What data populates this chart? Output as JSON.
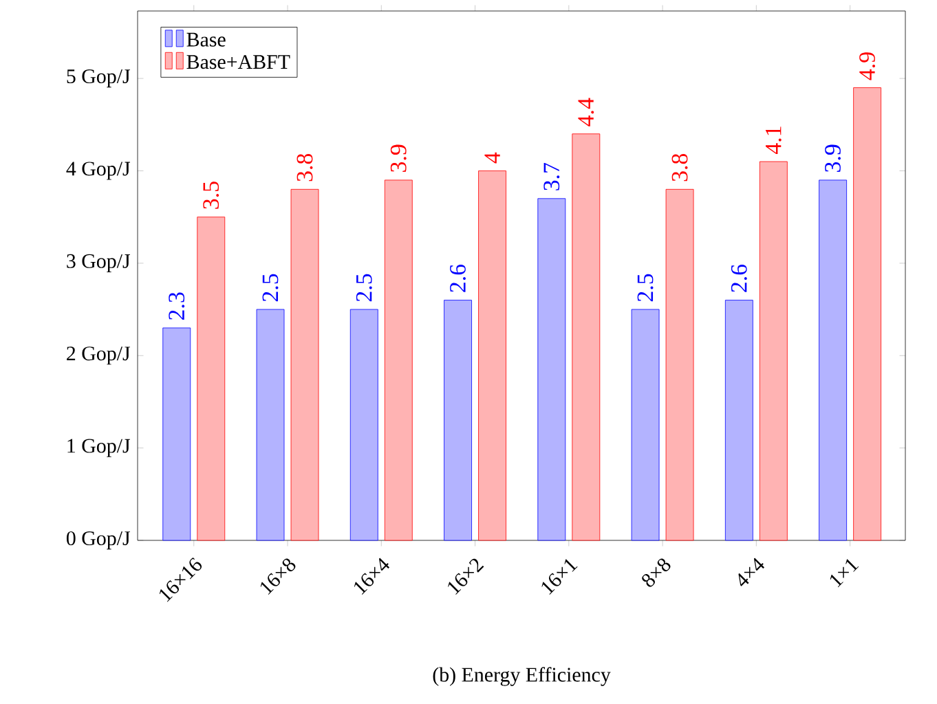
{
  "chart_data": {
    "type": "bar",
    "annotations": [
      "(b) Energy Efficiency"
    ],
    "categories": [
      "16×16",
      "16×8",
      "16×4",
      "16×2",
      "16×1",
      "8×8",
      "4×4",
      "1×1"
    ],
    "series": [
      {
        "name": "Base",
        "color": "#b3b3ff",
        "values": [
          2.3,
          2.5,
          2.5,
          2.6,
          3.7,
          2.5,
          2.6,
          3.9
        ]
      },
      {
        "name": "Base+ABFT",
        "color": "#ffb3b3",
        "values": [
          3.5,
          3.8,
          3.9,
          4,
          4.4,
          3.8,
          4.1,
          4.9
        ]
      }
    ],
    "ylim": [
      0,
      5.73
    ],
    "yticks": [
      {
        "value": 0,
        "label": "0 Gop/J"
      },
      {
        "value": 1,
        "label": "1 Gop/J"
      },
      {
        "value": 2,
        "label": "2 Gop/J"
      },
      {
        "value": 3,
        "label": "3 Gop/J"
      },
      {
        "value": 4,
        "label": "4 Gop/J"
      },
      {
        "value": 5,
        "label": "5 Gop/J"
      }
    ],
    "data_labels": true,
    "legend": "top left",
    "grid": false
  }
}
